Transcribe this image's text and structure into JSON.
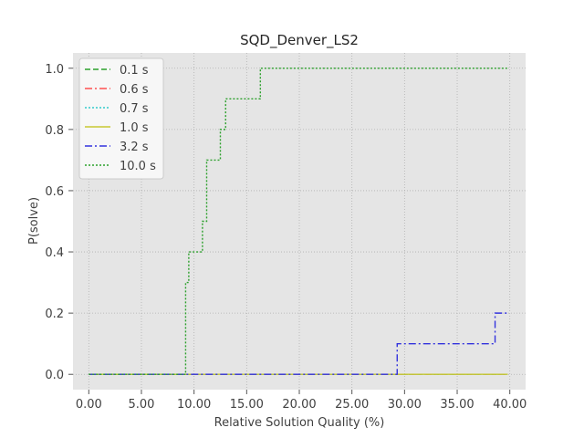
{
  "chart_data": {
    "type": "line",
    "title": "SQD_Denver_LS2",
    "xlabel": "Relative Solution Quality (%)",
    "ylabel": "P(solve)",
    "xlim": [
      -1.5,
      41.5
    ],
    "ylim": [
      -0.05,
      1.05
    ],
    "xticks": [
      0,
      5,
      10,
      15,
      20,
      25,
      30,
      35,
      40
    ],
    "xtick_labels": [
      "0.00",
      "5.00",
      "10.00",
      "15.00",
      "20.00",
      "25.00",
      "30.00",
      "35.00",
      "40.00"
    ],
    "yticks": [
      0,
      0.2,
      0.4,
      0.6,
      0.8,
      1.0
    ],
    "ytick_labels": [
      "0.0",
      "0.2",
      "0.4",
      "0.6",
      "0.8",
      "1.0"
    ],
    "grid": true,
    "legend_position": "top-left",
    "step": true,
    "series": [
      {
        "name": "0.1 s",
        "color": "#2ca02c",
        "dash": "6,3",
        "x": [
          0,
          39.8
        ],
        "y": [
          0,
          0
        ]
      },
      {
        "name": "0.6 s",
        "color": "#ff5050",
        "dash": "8,3,2,3",
        "x": [
          0,
          39.8
        ],
        "y": [
          0,
          0
        ]
      },
      {
        "name": "0.7 s",
        "color": "#33cccc",
        "dash": "2,2",
        "x": [
          0,
          39.8
        ],
        "y": [
          0,
          0
        ]
      },
      {
        "name": "1.0 s",
        "color": "#c8c832",
        "dash": "",
        "x": [
          0,
          29.3,
          39.8
        ],
        "y": [
          0,
          0,
          0
        ]
      },
      {
        "name": "3.2 s",
        "color": "#3333dd",
        "dash": "8,3,2,3",
        "x": [
          0,
          29.3,
          38.6,
          39.8
        ],
        "y": [
          0,
          0.1,
          0.2,
          0.2
        ]
      },
      {
        "name": "10.0 s",
        "color": "#2ca02c",
        "dash": "2,2",
        "x": [
          0,
          9.2,
          9.5,
          10.8,
          11.2,
          12.5,
          13.0,
          16.3,
          39.8
        ],
        "y": [
          0,
          0.3,
          0.4,
          0.5,
          0.7,
          0.8,
          0.9,
          1.0,
          1.0
        ]
      }
    ]
  }
}
